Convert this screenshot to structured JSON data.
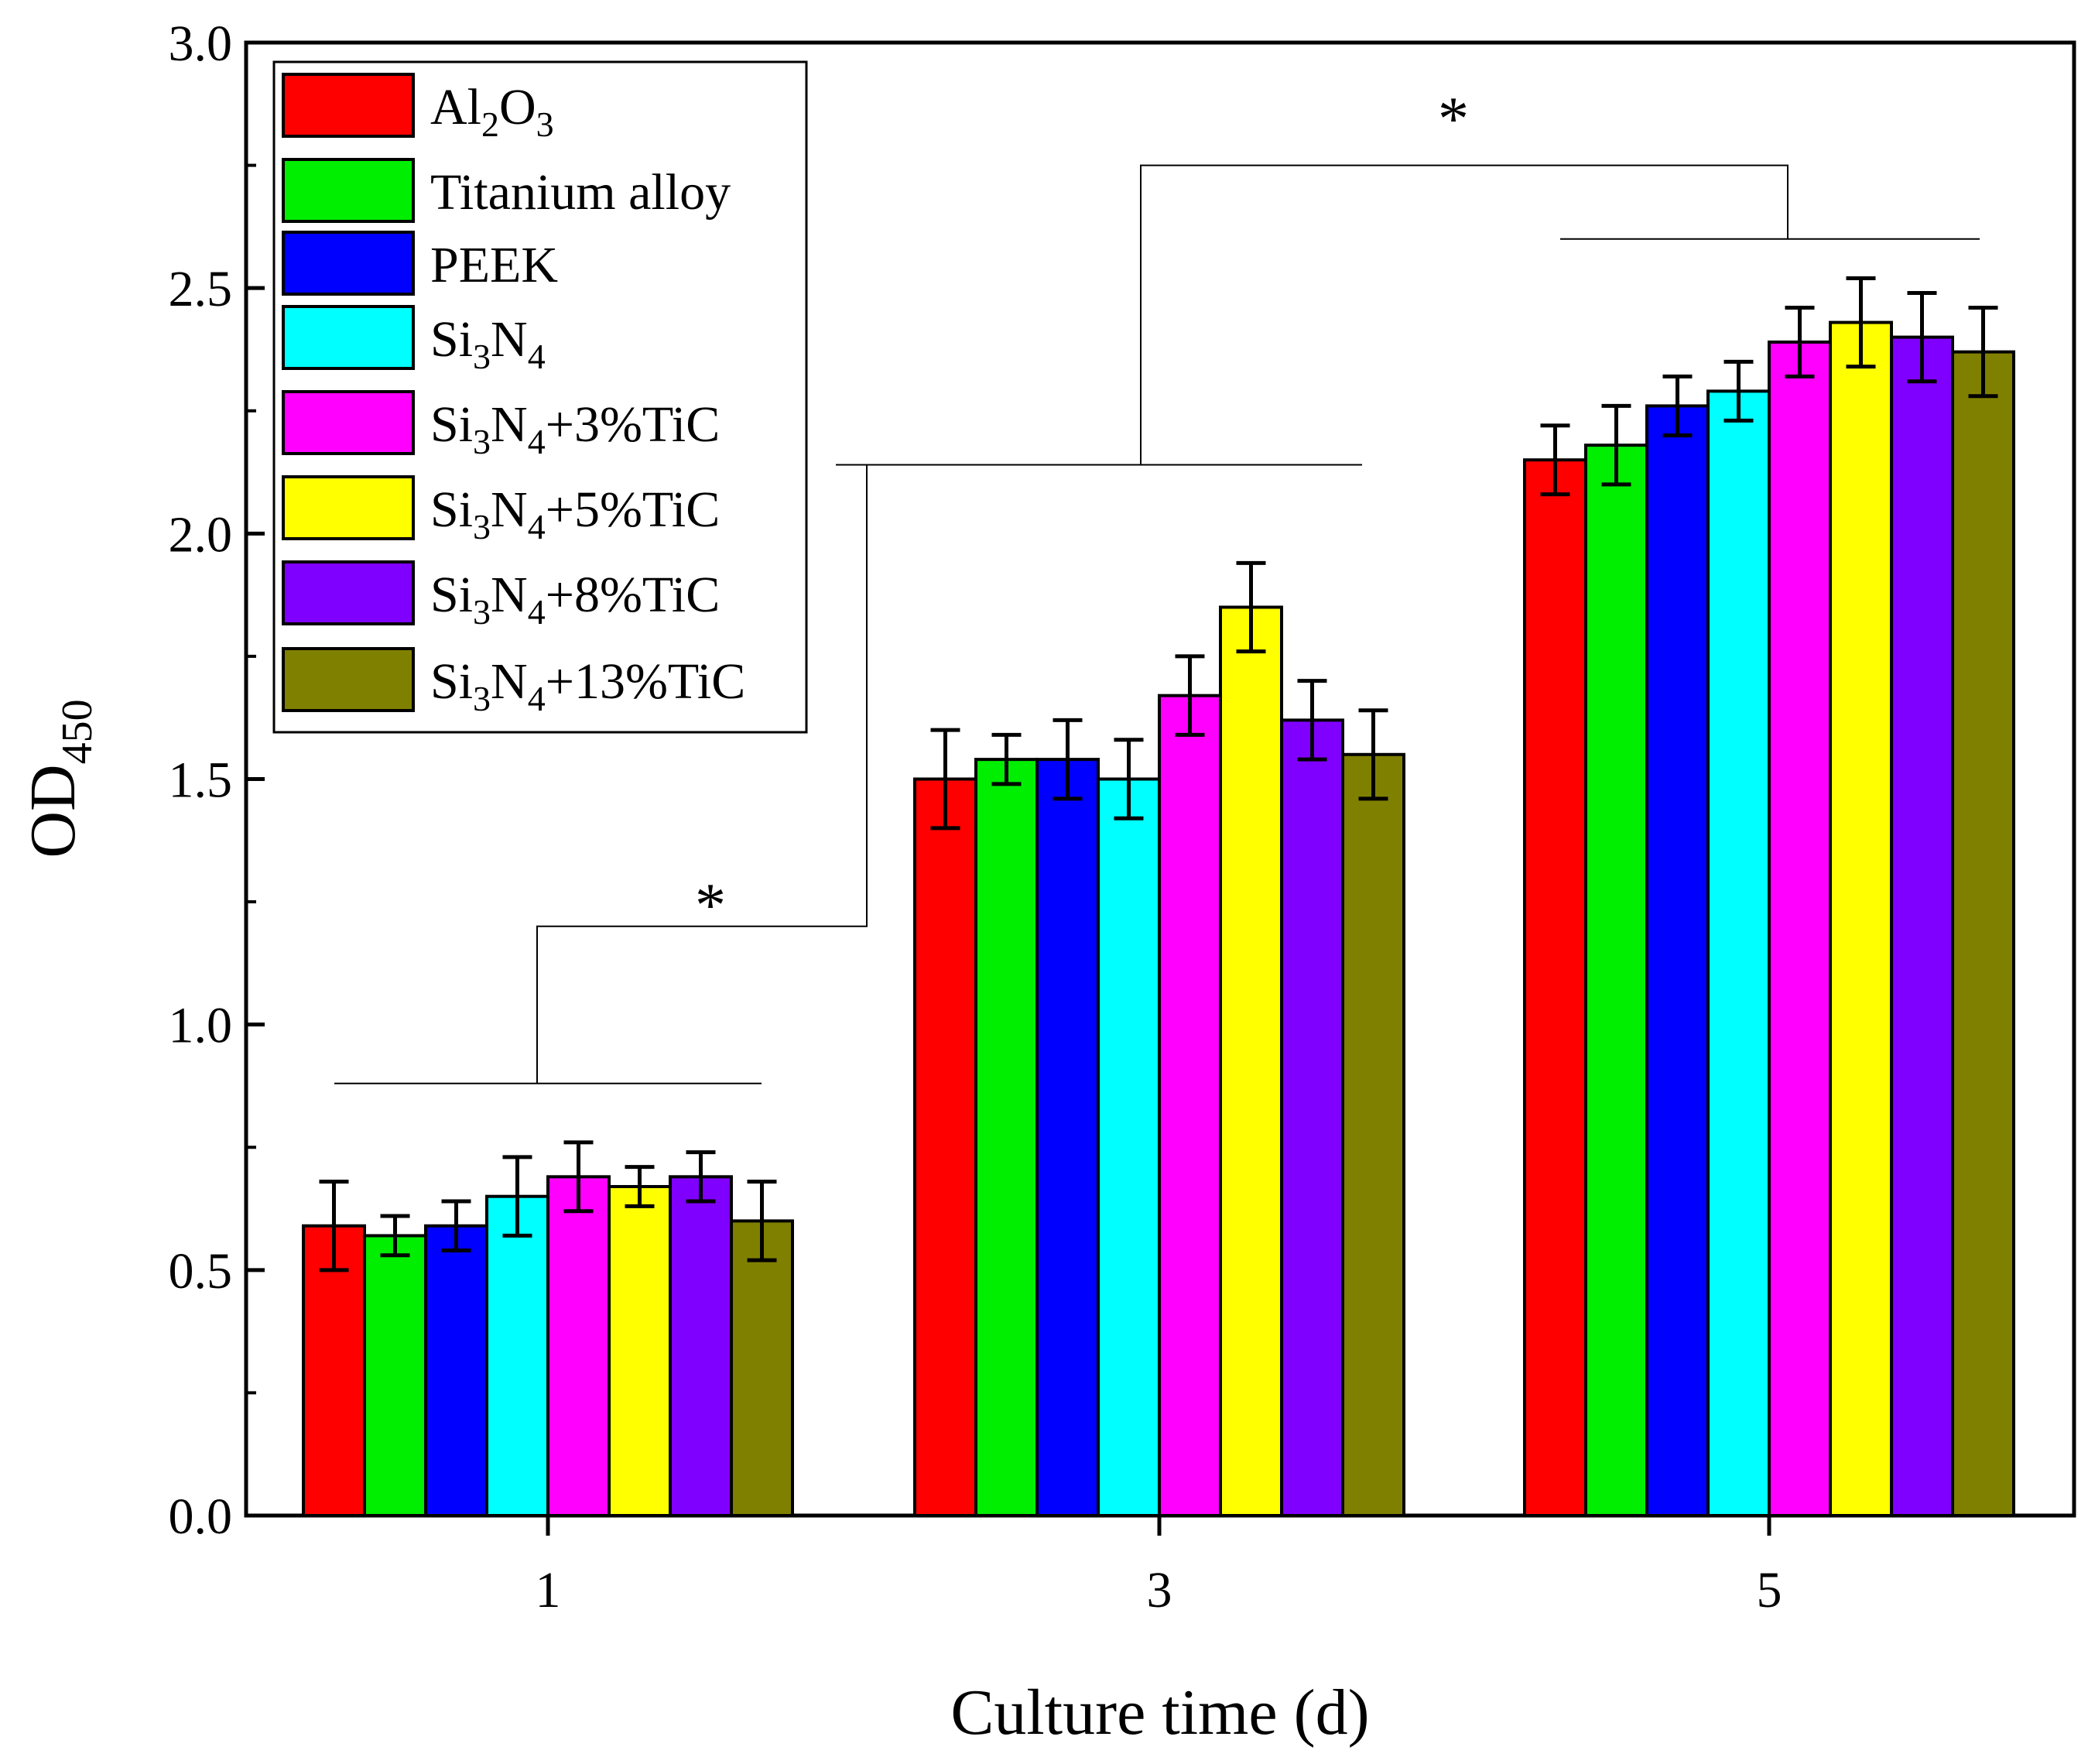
{
  "chart_data": {
    "type": "bar",
    "title": "",
    "xlabel": "Culture time (d)",
    "ylabel": {
      "main": "OD",
      "sub": "450"
    },
    "categories": [
      "1",
      "3",
      "5"
    ],
    "ylim": [
      0,
      3.0
    ],
    "yticks": [
      "0.0",
      "0.5",
      "1.0",
      "1.5",
      "2.0",
      "2.5",
      "3.0"
    ],
    "legend_position": "top-left",
    "series": [
      {
        "name": "Al2O3",
        "label_parts": [
          {
            "t": "Al"
          },
          {
            "t": "2",
            "sub": true
          },
          {
            "t": "O"
          },
          {
            "t": "3",
            "sub": true
          }
        ],
        "color": "#ff0000",
        "values": [
          0.59,
          1.5,
          2.15
        ],
        "errors": [
          0.09,
          0.1,
          0.07
        ]
      },
      {
        "name": "Titanium alloy",
        "label_parts": [
          {
            "t": "Titanium alloy"
          }
        ],
        "color": "#00ee00",
        "values": [
          0.57,
          1.54,
          2.18
        ],
        "errors": [
          0.04,
          0.05,
          0.08
        ]
      },
      {
        "name": "PEEK",
        "label_parts": [
          {
            "t": "PEEK"
          }
        ],
        "color": "#0000ff",
        "values": [
          0.59,
          1.54,
          2.26
        ],
        "errors": [
          0.05,
          0.08,
          0.06
        ]
      },
      {
        "name": "Si3N4",
        "label_parts": [
          {
            "t": "Si"
          },
          {
            "t": "3",
            "sub": true
          },
          {
            "t": "N"
          },
          {
            "t": "4",
            "sub": true
          }
        ],
        "color": "#00ffff",
        "values": [
          0.65,
          1.5,
          2.29
        ],
        "errors": [
          0.08,
          0.08,
          0.06
        ]
      },
      {
        "name": "Si3N4+3%TiC",
        "label_parts": [
          {
            "t": "Si"
          },
          {
            "t": "3",
            "sub": true
          },
          {
            "t": "N"
          },
          {
            "t": "4",
            "sub": true
          },
          {
            "t": "+3%TiC"
          }
        ],
        "color": "#ff00ff",
        "values": [
          0.69,
          1.67,
          2.39
        ],
        "errors": [
          0.07,
          0.08,
          0.07
        ]
      },
      {
        "name": "Si3N4+5%TiC",
        "label_parts": [
          {
            "t": "Si"
          },
          {
            "t": "3",
            "sub": true
          },
          {
            "t": "N"
          },
          {
            "t": "4",
            "sub": true
          },
          {
            "t": "+5%TiC"
          }
        ],
        "color": "#ffff00",
        "values": [
          0.67,
          1.85,
          2.43
        ],
        "errors": [
          0.04,
          0.09,
          0.09
        ]
      },
      {
        "name": "Si3N4+8%TiC",
        "label_parts": [
          {
            "t": "Si"
          },
          {
            "t": "3",
            "sub": true
          },
          {
            "t": "N"
          },
          {
            "t": "4",
            "sub": true
          },
          {
            "t": "+8%TiC"
          }
        ],
        "color": "#8000ff",
        "values": [
          0.69,
          1.62,
          2.4
        ],
        "errors": [
          0.05,
          0.08,
          0.09
        ]
      },
      {
        "name": "Si3N4+13%TiC",
        "label_parts": [
          {
            "t": "Si"
          },
          {
            "t": "3",
            "sub": true
          },
          {
            "t": "N"
          },
          {
            "t": "4",
            "sub": true
          },
          {
            "t": "+13%TiC"
          }
        ],
        "color": "#808000",
        "values": [
          0.6,
          1.55,
          2.37
        ],
        "errors": [
          0.08,
          0.09,
          0.09
        ]
      }
    ],
    "significance": [
      {
        "label": "*",
        "between": [
          "1",
          "3"
        ],
        "level_low": 0.88,
        "level_high": 1.2,
        "level_top": 2.14
      },
      {
        "label": "*",
        "between": [
          "3",
          "5"
        ],
        "level_low": 2.14,
        "level_high": 2.6,
        "level_top": 2.75
      }
    ]
  }
}
